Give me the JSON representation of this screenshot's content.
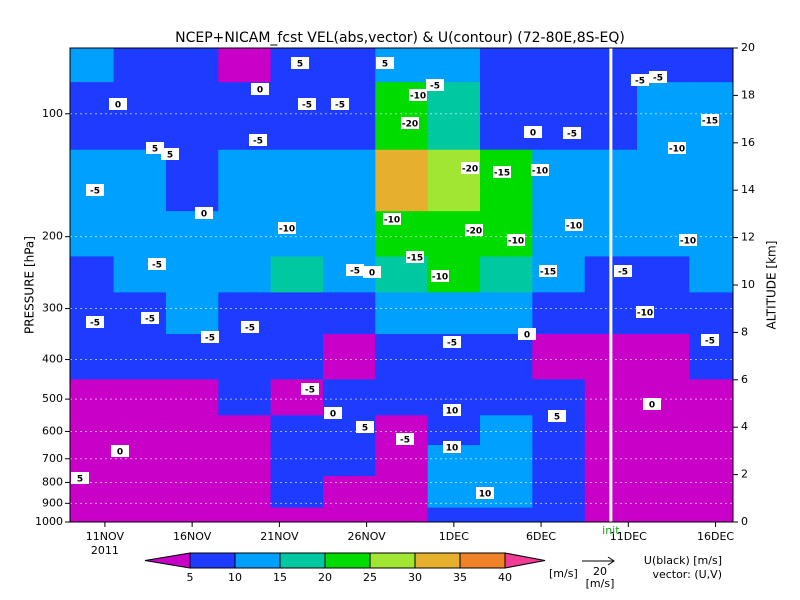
{
  "chart_data": {
    "type": "contour",
    "title": "NCEP+NICAM_fcst VEL(abs,vector) & U(contour)  (72-80E,8S-EQ)",
    "ylabel": "PRESSURE [hPa]",
    "y2label": "ALTITUDE [km]",
    "year_label": "2011",
    "init_label": "init",
    "init_date": "2011-12-10",
    "log_y": true,
    "grid": true,
    "xlim": [
      "2011-11-09",
      "2011-12-17"
    ],
    "xticks": [
      {
        "value": "2011-11-11",
        "label": "11NOV"
      },
      {
        "value": "2011-11-16",
        "label": "16NOV"
      },
      {
        "value": "2011-11-21",
        "label": "21NOV"
      },
      {
        "value": "2011-11-26",
        "label": "26NOV"
      },
      {
        "value": "2011-12-01",
        "label": "1DEC"
      },
      {
        "value": "2011-12-06",
        "label": "6DEC"
      },
      {
        "value": "2011-12-11",
        "label": "11DEC"
      },
      {
        "value": "2011-12-16",
        "label": "16DEC"
      }
    ],
    "ylim": [
      1000,
      69
    ],
    "yticks": [
      100,
      200,
      300,
      400,
      500,
      600,
      700,
      800,
      900,
      1000
    ],
    "y2lim": [
      0,
      20
    ],
    "y2ticks": [
      0,
      2,
      4,
      6,
      8,
      10,
      12,
      14,
      16,
      18,
      20
    ],
    "x": [
      "2011-11-10",
      "2011-11-13",
      "2011-11-16",
      "2011-11-19",
      "2011-11-22",
      "2011-11-25",
      "2011-11-28",
      "2011-12-01",
      "2011-12-04",
      "2011-12-07",
      "2011-12-10",
      "2011-12-13",
      "2011-12-16"
    ],
    "levels": [
      70,
      100,
      150,
      200,
      250,
      300,
      400,
      500,
      600,
      700,
      850,
      1000
    ],
    "values": [
      [
        12,
        6,
        7,
        4,
        6,
        8,
        14,
        12,
        8,
        7,
        6,
        9,
        8
      ],
      [
        7,
        8,
        9,
        6,
        9,
        8,
        22,
        18,
        9,
        8,
        7,
        10,
        12
      ],
      [
        12,
        12,
        9,
        11,
        12,
        10,
        32,
        28,
        22,
        12,
        10,
        12,
        14
      ],
      [
        11,
        12,
        13,
        11,
        13,
        13,
        22,
        24,
        22,
        12,
        10,
        11,
        12
      ],
      [
        9,
        11,
        10,
        14,
        16,
        12,
        18,
        20,
        17,
        10,
        8,
        9,
        10
      ],
      [
        8,
        9,
        11,
        8,
        7,
        9,
        12,
        14,
        12,
        8,
        7,
        6,
        8
      ],
      [
        6,
        7,
        6,
        8,
        6,
        4,
        8,
        6,
        8,
        4,
        3,
        4,
        7
      ],
      [
        3,
        3,
        4,
        6,
        4,
        6,
        7,
        9,
        8,
        6,
        3,
        3,
        4
      ],
      [
        3,
        3,
        4,
        2,
        8,
        7,
        4,
        9,
        10,
        8,
        3,
        3,
        4
      ],
      [
        3,
        2,
        3,
        3,
        7,
        6,
        3,
        12,
        11,
        8,
        3,
        2,
        3
      ],
      [
        4,
        3,
        2,
        3,
        6,
        4,
        3,
        13,
        12,
        8,
        3,
        3,
        4
      ],
      [
        3,
        3,
        2,
        2,
        4,
        3,
        2,
        8,
        7,
        5,
        3,
        2,
        3
      ]
    ],
    "colorbar": {
      "bounds": [
        5,
        10,
        15,
        20,
        25,
        30,
        35,
        40
      ],
      "colors": [
        "#c800c8",
        "#1e3cff",
        "#00a0ff",
        "#00c8a0",
        "#00dc00",
        "#a0e632",
        "#e6af2d",
        "#f08228",
        "#f03c96"
      ],
      "unit": "[m/s]"
    },
    "vector_legend": {
      "value": 20,
      "unit": "[m/s]"
    },
    "contour_legend": "U(black) [m/s]",
    "vector_note": "vector: (U,V)",
    "contour_labels": [
      5,
      5,
      -5,
      -10,
      0,
      0,
      -5,
      -5,
      -20,
      0,
      -5,
      5,
      5,
      -5,
      -20,
      -15,
      -10,
      -5,
      0,
      -10,
      -20,
      -10,
      -10,
      -10,
      -15,
      -5,
      -5,
      0,
      -10,
      -15,
      -5,
      -5,
      -5,
      -5,
      0,
      -5,
      -5,
      0,
      10,
      5,
      5,
      -5,
      0,
      10,
      10,
      5,
      -5,
      -5,
      -15,
      -10,
      -10,
      -5,
      -10,
      -5,
      0
    ]
  }
}
